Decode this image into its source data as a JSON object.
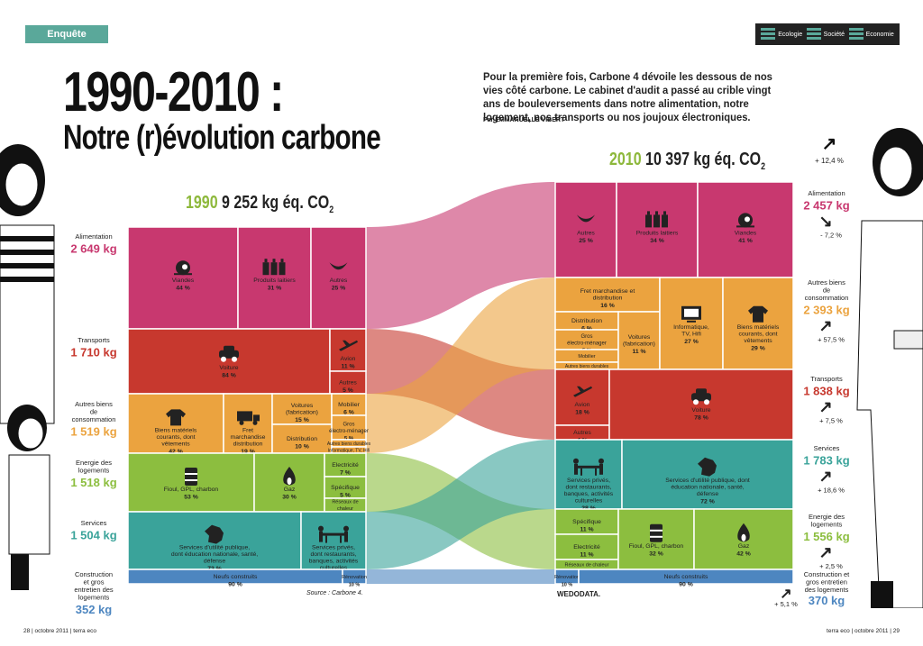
{
  "section_tag": "Enquête",
  "topics": [
    "Ecologie",
    "Société",
    "Economie"
  ],
  "title": "1990-2010 :",
  "subtitle": "Notre (r)évolution carbone",
  "intro": "Pour la première fois, Carbone 4 dévoile les dessous de nos vies côté carbone. Le cabinet d'audit a passé au crible vingt ans de bouleversements dans notre alimentation, notre logement, nos transports ou nos joujoux électroniques.",
  "byline": "Par EMMANUELLE VIBERT",
  "header_1990": {
    "year": "1990",
    "total": "9 252 kg éq. CO",
    "sub": "2"
  },
  "header_2010": {
    "year": "2010",
    "total": "10 397 kg éq. CO",
    "sub": "2"
  },
  "total_change": "+ 12,4 %",
  "source": "Source : Carbone 4.",
  "credit": "WEDODATA.",
  "footer_left": "28 | octobre 2011 | terra eco",
  "footer_right": "terra eco | octobre 2011 | 29",
  "colors": {
    "alimentation": "#c8386f",
    "autres": "#eba33f",
    "transports": "#c7382e",
    "energie": "#8cbe3f",
    "services": "#3aa39a",
    "construction": "#4d86c0"
  },
  "chart_data": {
    "type": "table",
    "y1990": {
      "categories": [
        {
          "name": "Alimentation",
          "value": "2 649 kg",
          "items": [
            {
              "label": "Viandes",
              "pct": "44 %",
              "icon": "meat-icon"
            },
            {
              "label": "Produits laitiers",
              "pct": "31 %",
              "icon": "dairy-icon"
            },
            {
              "label": "Autres",
              "pct": "25 %",
              "icon": "banana-icon"
            }
          ]
        },
        {
          "name": "Transports",
          "value": "1 710 kg",
          "items": [
            {
              "label": "Voiture",
              "pct": "84 %",
              "icon": "car-icon"
            },
            {
              "label": "Avion",
              "pct": "11 %",
              "icon": "plane-icon"
            },
            {
              "label": "Autres",
              "pct": "5 %"
            }
          ]
        },
        {
          "name": "Autres biens de consommation",
          "value": "1 519 kg",
          "items": [
            {
              "label": "Biens matériels courants, dont vêtements",
              "pct": "42 %",
              "icon": "shirt-icon"
            },
            {
              "label": "Fret marchandise distribution",
              "pct": "19 %",
              "icon": "truck-icon"
            },
            {
              "label": "Voitures (fabrication)",
              "pct": "15 %"
            },
            {
              "label": "Distribution",
              "pct": "10 %"
            },
            {
              "label": "Mobilier",
              "pct": "6 %"
            },
            {
              "label": "Gros électro-ménager",
              "pct": "5 %"
            },
            {
              "label": "Autres biens durables",
              "pct": "2 %"
            },
            {
              "label": "Informatique, TV, Hifi",
              "pct": "1 %"
            }
          ]
        },
        {
          "name": "Energie des logements",
          "value": "1 518 kg",
          "items": [
            {
              "label": "Fioul, GPL, charbon",
              "pct": "53 %",
              "icon": "barrel-icon"
            },
            {
              "label": "Gaz",
              "pct": "30 %",
              "icon": "flame-icon"
            },
            {
              "label": "Electricité",
              "pct": "7 %"
            },
            {
              "label": "Spécifique",
              "pct": "5 %"
            },
            {
              "label": "Réseaux de chaleur",
              "pct": "4 %"
            }
          ]
        },
        {
          "name": "Services",
          "value": "1 504 kg",
          "items": [
            {
              "label": "Services d'utilité publique, dont éducation nationale, santé, défense",
              "pct": "73 %",
              "icon": "france-icon"
            },
            {
              "label": "Services privés, dont restaurants, banques, activités culturelles",
              "pct": "27 %",
              "icon": "table-icon"
            }
          ]
        },
        {
          "name": "Construction et gros entretien des logements",
          "value": "352 kg",
          "items": [
            {
              "label": "Neufs construits",
              "pct": "90 %"
            },
            {
              "label": "Rénovation",
              "pct": "10 %"
            }
          ]
        }
      ]
    },
    "y2010": {
      "categories": [
        {
          "name": "Alimentation",
          "value": "2 457 kg",
          "change": "- 7,2 %",
          "items": [
            {
              "label": "Autres",
              "pct": "25 %",
              "icon": "banana-icon"
            },
            {
              "label": "Produits laitiers",
              "pct": "34 %",
              "icon": "dairy-icon"
            },
            {
              "label": "Viandes",
              "pct": "41 %",
              "icon": "meat-icon"
            }
          ]
        },
        {
          "name": "Autres biens de consommation",
          "value": "2 393 kg",
          "change": "+ 57,5 %",
          "items": [
            {
              "label": "Fret marchandise et distribution",
              "pct": "16 %"
            },
            {
              "label": "Distribution",
              "pct": "6 %"
            },
            {
              "label": "Gros électro-ménager",
              "pct": "5 %"
            },
            {
              "label": "Mobilier",
              "pct": "4 %"
            },
            {
              "label": "Autres biens durables",
              "pct": "2 %"
            },
            {
              "label": "Voitures (fabrication)",
              "pct": "11 %"
            },
            {
              "label": "Informatique, TV, Hifi",
              "pct": "27 %",
              "icon": "monitor-icon"
            },
            {
              "label": "Biens matériels courants, dont vêtements",
              "pct": "29 %",
              "icon": "shirt-icon"
            }
          ]
        },
        {
          "name": "Transports",
          "value": "1 838 kg",
          "change": "+ 7,5 %",
          "items": [
            {
              "label": "Avion",
              "pct": "18 %",
              "icon": "plane-icon"
            },
            {
              "label": "Autres",
              "pct": "4 %"
            },
            {
              "label": "Voiture",
              "pct": "78 %",
              "icon": "car-icon"
            }
          ]
        },
        {
          "name": "Services",
          "value": "1 783 kg",
          "change": "+ 18,6 %",
          "items": [
            {
              "label": "Services privés, dont restaurants, banques, activités culturelles",
              "pct": "28 %",
              "icon": "table-icon"
            },
            {
              "label": "Services d'utilité publique, dont éducation nationale, santé, défense",
              "pct": "72 %",
              "icon": "france-icon"
            }
          ]
        },
        {
          "name": "Energie des logements",
          "value": "1 556 kg",
          "change": "+ 2,5 %",
          "items": [
            {
              "label": "Spécifique",
              "pct": "11 %"
            },
            {
              "label": "Electricité",
              "pct": "11 %"
            },
            {
              "label": "Réseaux de chaleur",
              "pct": "4 %"
            },
            {
              "label": "Fioul, GPL, charbon",
              "pct": "32 %",
              "icon": "barrel-icon"
            },
            {
              "label": "Gaz",
              "pct": "42 %",
              "icon": "flame-icon"
            }
          ]
        },
        {
          "name": "Construction et gros entretien des logements",
          "value": "370 kg",
          "change": "+ 5,1 %",
          "items": [
            {
              "label": "Rénovation",
              "pct": "10 %"
            },
            {
              "label": "Neufs construits",
              "pct": "90 %"
            }
          ]
        }
      ]
    }
  }
}
